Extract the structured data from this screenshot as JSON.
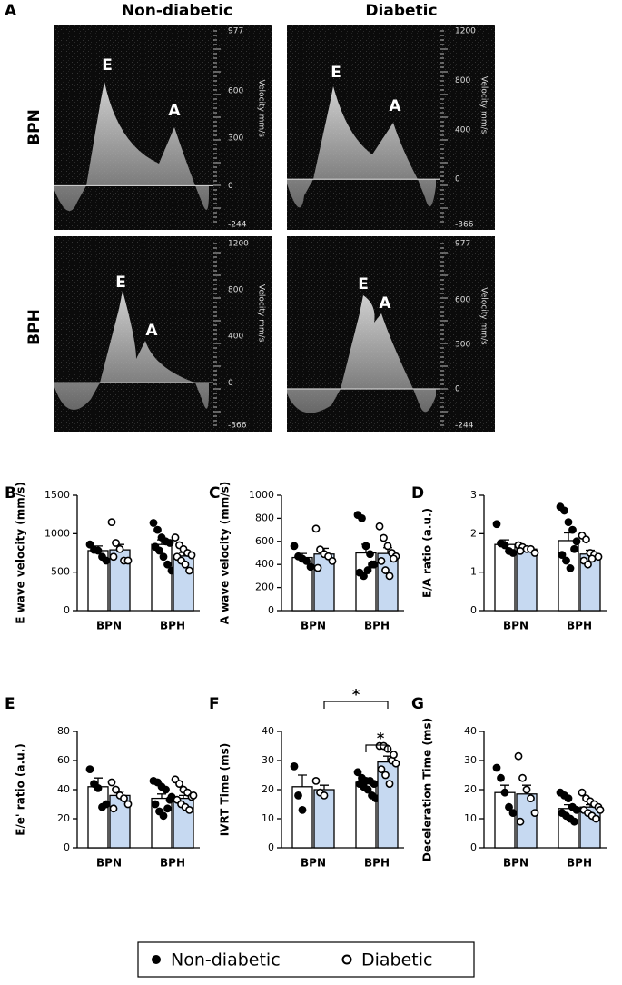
{
  "panel_a": {
    "label": "A",
    "columns": [
      "Non-diabetic",
      "Diabetic"
    ],
    "rows": [
      "BPN",
      "BPH"
    ],
    "images": [
      {
        "scale": [
          977,
          600,
          300,
          0,
          -244
        ],
        "scale_label": "Velocity mm/s",
        "peaks": [
          "E",
          "A"
        ]
      },
      {
        "scale": [
          1200,
          800,
          400,
          0,
          -366
        ],
        "scale_label": "Velocity mm/s",
        "peaks": [
          "E",
          "A"
        ]
      },
      {
        "scale": [
          1200,
          800,
          400,
          0,
          -366
        ],
        "scale_label": "Velocity mm/s",
        "peaks": [
          "E",
          "A"
        ]
      },
      {
        "scale": [
          977,
          600,
          300,
          0,
          -244
        ],
        "scale_label": "Velocity mm/s",
        "peaks": [
          "E",
          "A"
        ]
      }
    ]
  },
  "chart_data": [
    {
      "type": "bar",
      "panel": "B",
      "ylabel": "E wave velocity (mm/s)",
      "categories": [
        "BPN",
        "BPH"
      ],
      "ylim": [
        0,
        1500
      ],
      "yticks": [
        0,
        500,
        1000,
        1500
      ],
      "series": [
        {
          "name": "Non-diabetic",
          "color": "#ffffff",
          "marker": "filled",
          "values": [
            780,
            860
          ],
          "errors": [
            60,
            60
          ],
          "points": [
            [
              860,
              790,
              780,
              700,
              650
            ],
            [
              1140,
              1050,
              950,
              900,
              880,
              830,
              780,
              700,
              600,
              520
            ]
          ]
        },
        {
          "name": "Diabetic",
          "color": "#c6d9f1",
          "marker": "open",
          "values": [
            790,
            710
          ],
          "errors": [
            70,
            45
          ],
          "points": [
            [
              1150,
              880,
              800,
              650,
              650,
              700
            ],
            [
              950,
              850,
              800,
              750,
              720,
              700,
              650,
              600,
              520
            ]
          ]
        }
      ]
    },
    {
      "type": "bar",
      "panel": "C",
      "ylabel": "A wave velocity (mm/s)",
      "categories": [
        "BPN",
        "BPH"
      ],
      "ylim": [
        0,
        1000
      ],
      "yticks": [
        0,
        200,
        400,
        600,
        800,
        1000
      ],
      "series": [
        {
          "name": "Non-diabetic",
          "color": "#ffffff",
          "marker": "filled",
          "values": [
            460,
            500
          ],
          "errors": [
            35,
            75
          ],
          "points": [
            [
              560,
              470,
              450,
              430,
              380
            ],
            [
              830,
              800,
              560,
              490,
              400,
              330,
              300,
              350,
              400
            ]
          ]
        },
        {
          "name": "Diabetic",
          "color": "#c6d9f1",
          "marker": "open",
          "values": [
            490,
            495
          ],
          "errors": [
            50,
            50
          ],
          "points": [
            [
              710,
              530,
              490,
              470,
              430,
              370
            ],
            [
              730,
              630,
              560,
              500,
              470,
              430,
              350,
              300,
              450
            ]
          ]
        }
      ]
    },
    {
      "type": "bar",
      "panel": "D",
      "ylabel": "E/A ratio (a.u.)",
      "categories": [
        "BPN",
        "BPH"
      ],
      "ylim": [
        0,
        3
      ],
      "yticks": [
        0,
        1,
        2,
        3
      ],
      "series": [
        {
          "name": "Non-diabetic",
          "color": "#ffffff",
          "marker": "filled",
          "values": [
            1.72,
            1.82
          ],
          "errors": [
            0.12,
            0.2
          ],
          "points": [
            [
              2.25,
              1.75,
              1.7,
              1.55,
              1.5
            ],
            [
              2.7,
              2.6,
              2.3,
              2.1,
              1.8,
              1.45,
              1.3,
              1.1,
              1.6
            ]
          ]
        },
        {
          "name": "Diabetic",
          "color": "#c6d9f1",
          "marker": "open",
          "values": [
            1.6,
            1.47
          ],
          "errors": [
            0.05,
            0.1
          ],
          "points": [
            [
              1.7,
              1.65,
              1.6,
              1.6,
              1.5,
              1.55
            ],
            [
              1.95,
              1.85,
              1.5,
              1.45,
              1.4,
              1.3,
              1.2,
              1.35
            ]
          ]
        }
      ]
    },
    {
      "type": "bar",
      "panel": "E",
      "ylabel": "E/e' ratio (a.u.)",
      "categories": [
        "BPN",
        "BPH"
      ],
      "ylim": [
        0,
        80
      ],
      "yticks": [
        0,
        20,
        40,
        60,
        80
      ],
      "series": [
        {
          "name": "Non-diabetic",
          "color": "#ffffff",
          "marker": "filled",
          "values": [
            42,
            34
          ],
          "errors": [
            6,
            3
          ],
          "points": [
            [
              54,
              44,
              41,
              28,
              30
            ],
            [
              46,
              45,
              42,
              40,
              33,
              30,
              25,
              22,
              27,
              35
            ]
          ]
        },
        {
          "name": "Diabetic",
          "color": "#c6d9f1",
          "marker": "open",
          "values": [
            36,
            34
          ],
          "errors": [
            3,
            2
          ],
          "points": [
            [
              45,
              40,
              36,
              34,
              30,
              27
            ],
            [
              47,
              44,
              40,
              38,
              35,
              33,
              30,
              28,
              26,
              36
            ]
          ]
        }
      ]
    },
    {
      "type": "bar",
      "panel": "F",
      "ylabel": "IVRT Time (ms)",
      "categories": [
        "BPN",
        "BPH"
      ],
      "ylim": [
        0,
        40
      ],
      "yticks": [
        0,
        10,
        20,
        30,
        40
      ],
      "annotations": [
        "*",
        "*"
      ],
      "series": [
        {
          "name": "Non-diabetic",
          "color": "#ffffff",
          "marker": "filled",
          "values": [
            21,
            22.5
          ],
          "errors": [
            4,
            1.2
          ],
          "points": [
            [
              28,
              18,
              13
            ],
            [
              26,
              24,
              23,
              23,
              22,
              22,
              21,
              20,
              18,
              17
            ]
          ]
        },
        {
          "name": "Diabetic",
          "color": "#c6d9f1",
          "marker": "open",
          "values": [
            20,
            29.5
          ],
          "errors": [
            1.5,
            2
          ],
          "points": [
            [
              23,
              19,
              18
            ],
            [
              35,
              35,
              34,
              30,
              29,
              27,
              25,
              22,
              32
            ]
          ]
        }
      ]
    },
    {
      "type": "bar",
      "panel": "G",
      "ylabel": "Deceleration Time (ms)",
      "categories": [
        "BPN",
        "BPH"
      ],
      "ylim": [
        0,
        40
      ],
      "yticks": [
        0,
        10,
        20,
        30,
        40
      ],
      "series": [
        {
          "name": "Non-diabetic",
          "color": "#ffffff",
          "marker": "filled",
          "values": [
            19,
            13.5
          ],
          "errors": [
            2.5,
            1.3
          ],
          "points": [
            [
              27.5,
              24,
              19,
              14,
              12
            ],
            [
              19,
              18,
              17,
              14,
              13,
              12,
              11,
              10,
              9
            ]
          ]
        },
        {
          "name": "Diabetic",
          "color": "#c6d9f1",
          "marker": "open",
          "values": [
            18.5,
            14
          ],
          "errors": [
            3,
            0.8
          ],
          "points": [
            [
              31.5,
              24,
              20,
              17,
              12,
              9
            ],
            [
              19,
              17,
              16,
              15,
              14,
              13,
              12,
              11,
              10,
              13
            ]
          ]
        }
      ]
    }
  ]
}
